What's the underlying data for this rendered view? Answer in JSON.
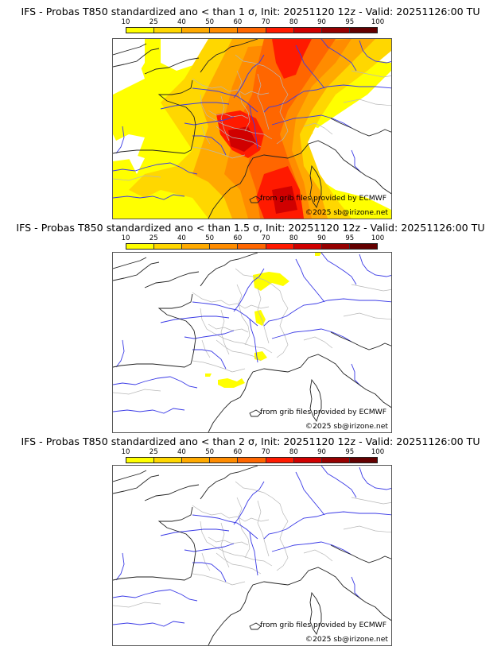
{
  "chart_data": [
    {
      "type": "heatmap",
      "title": "IFS - Probas T850  standardized ano < than 1 σ, Init: 20251120 12z - Valid: 20251126:00 TU",
      "colorbar": {
        "ticks": [
          "10",
          "25",
          "40",
          "50",
          "60",
          "70",
          "80",
          "90",
          "95",
          "100"
        ],
        "colors": [
          "#ffff00",
          "#ffd700",
          "#ffaa00",
          "#ff8c00",
          "#ff6600",
          "#ff1a00",
          "#d00000",
          "#960000",
          "#640000"
        ]
      },
      "description_region": "France and neighbouring Europe",
      "credits": [
        "from grib files provided by ECMWF",
        "©2025 sb@irizone.net"
      ]
    },
    {
      "type": "heatmap",
      "title": "IFS - Probas T850  standardized ano < than 1.5 σ, Init: 20251120 12z - Valid: 20251126:00 TU",
      "colorbar": {
        "ticks": [
          "10",
          "25",
          "40",
          "50",
          "60",
          "70",
          "80",
          "90",
          "95",
          "100"
        ],
        "colors": [
          "#ffff00",
          "#ffd700",
          "#ffaa00",
          "#ff8c00",
          "#ff6600",
          "#ff1a00",
          "#d00000",
          "#960000",
          "#640000"
        ]
      },
      "credits": [
        "from grib files provided by ECMWF",
        "©2025 sb@irizone.net"
      ]
    },
    {
      "type": "heatmap",
      "title": "IFS - Probas T850  standardized ano < than 2 σ, Init: 20251120 12z - Valid: 20251126:00 TU",
      "colorbar": {
        "ticks": [
          "10",
          "25",
          "40",
          "50",
          "60",
          "70",
          "80",
          "90",
          "95",
          "100"
        ],
        "colors": [
          "#ffff00",
          "#ffd700",
          "#ffaa00",
          "#ff8c00",
          "#ff6600",
          "#ff1a00",
          "#d00000",
          "#960000",
          "#640000"
        ]
      },
      "credits": [
        "from grib files provided by ECMWF",
        "©2025 sb@irizone.net"
      ]
    }
  ]
}
